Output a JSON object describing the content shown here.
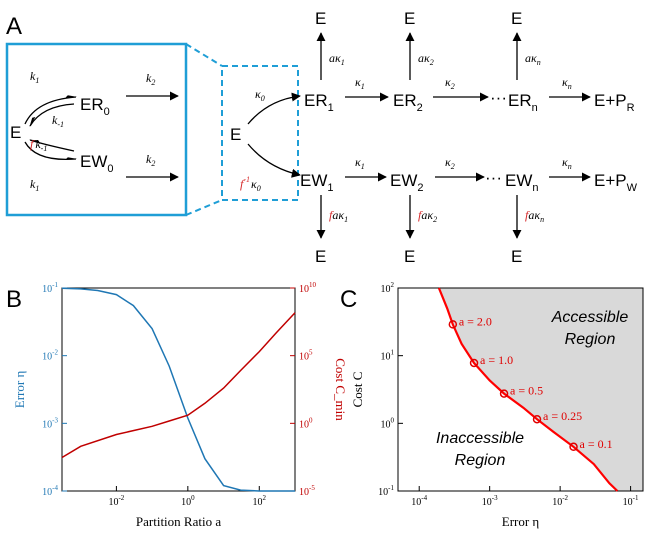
{
  "panels": {
    "A": "A",
    "B": "B",
    "C": "C"
  },
  "scheme_box": {
    "E": "E",
    "ER0": "ER",
    "ER0_sub": "0",
    "EW0": "EW",
    "EW0_sub": "0",
    "k1": "k",
    "k1_sub": "1",
    "km1": "k",
    "km1_sub": "-1",
    "k2": "k",
    "k2_sub": "2",
    "f": "f"
  },
  "scheme_main": {
    "E": "E",
    "top_species": [
      "ER",
      "ER",
      "ER"
    ],
    "top_subs": [
      "1",
      "2",
      "n"
    ],
    "bottom_species": [
      "EW",
      "EW",
      "EW"
    ],
    "bottom_subs": [
      "1",
      "2",
      "n"
    ],
    "ellipsis": "···",
    "product_R": "E+P",
    "product_R_sub": "R",
    "product_W": "E+P",
    "product_W_sub": "W",
    "kappa": "κ",
    "a": "a",
    "f": "f",
    "finv": "f",
    "finv_sup": "-1",
    "kappa_subs": [
      "1",
      "2",
      "n"
    ],
    "kappa0_sub": "0",
    "E_label": "E"
  },
  "chart_data": [
    {
      "type": "line",
      "panel": "B",
      "xlabel": "Partition Ratio a",
      "ylabel_left": "Error η",
      "ylabel_right": "Cost C_min",
      "xlim": [
        0.0003,
        1000
      ],
      "ylim_left": [
        0.0001,
        0.1
      ],
      "ylim_right": [
        1e-05,
        10000000000
      ],
      "x_ticks": [
        "10",
        "10",
        "10",
        "10"
      ],
      "x_tick_exps": [
        "-2",
        "0",
        "2",
        ""
      ],
      "y_left_ticks": [
        "10",
        "10",
        "10",
        "10"
      ],
      "y_left_tick_exps": [
        "-1",
        "-2",
        "-3",
        "-4"
      ],
      "y_right_ticks": [
        "10",
        "10",
        "10",
        "10"
      ],
      "y_right_tick_exps": [
        "10",
        "5",
        "0",
        "-5"
      ],
      "series": [
        {
          "axis": "left",
          "color": "#1f77b4",
          "x": [
            0.0003,
            0.001,
            0.003,
            0.01,
            0.03,
            0.1,
            0.3,
            1,
            3,
            10,
            30,
            100,
            300,
            1000
          ],
          "y": [
            0.099,
            0.097,
            0.092,
            0.08,
            0.055,
            0.025,
            0.007,
            0.0012,
            0.0003,
            0.00012,
            0.000103,
            0.0001,
            0.0001,
            0.0001
          ]
        },
        {
          "axis": "right",
          "color": "#c00000",
          "x": [
            0.0003,
            0.001,
            0.01,
            0.1,
            0.3,
            1,
            3,
            10,
            30,
            100,
            300,
            1000
          ],
          "y": [
            0.003,
            0.02,
            0.15,
            0.6,
            1.5,
            4,
            30,
            400,
            8000,
            200000,
            5000000,
            150000000
          ]
        }
      ]
    },
    {
      "type": "line",
      "panel": "C",
      "xlabel": "Error η",
      "ylabel": "Cost C",
      "xlim": [
        5e-05,
        0.15
      ],
      "ylim": [
        0.1,
        100
      ],
      "x_ticks": [
        "10",
        "10",
        "10",
        "10"
      ],
      "x_tick_exps": [
        "-4",
        "-3",
        "-2",
        "-1"
      ],
      "y_ticks": [
        "10",
        "10",
        "10",
        "10"
      ],
      "y_tick_exps": [
        "2",
        "1",
        "0",
        "-1"
      ],
      "series": [
        {
          "color": "#ff0000",
          "x": [
            0.00019,
            0.00025,
            0.0003,
            0.0004,
            0.0006,
            0.001,
            0.0016,
            0.003,
            0.0047,
            0.008,
            0.0155,
            0.03,
            0.05,
            0.065
          ],
          "y": [
            100,
            50,
            29,
            15,
            7.8,
            4.3,
            2.75,
            1.7,
            1.15,
            0.75,
            0.45,
            0.25,
            0.13,
            0.1
          ]
        }
      ],
      "markers": [
        {
          "x": 0.0003,
          "y": 29,
          "label": "a = 2.0"
        },
        {
          "x": 0.0006,
          "y": 7.8,
          "label": "a = 1.0"
        },
        {
          "x": 0.0016,
          "y": 2.75,
          "label": "a = 0.5"
        },
        {
          "x": 0.0047,
          "y": 1.15,
          "label": "a = 0.25"
        },
        {
          "x": 0.0155,
          "y": 0.45,
          "label": "a = 0.1"
        }
      ],
      "regions": {
        "accessible": [
          "Accessible",
          "Region"
        ],
        "inaccessible": [
          "Inaccessible",
          "Region"
        ]
      }
    }
  ]
}
